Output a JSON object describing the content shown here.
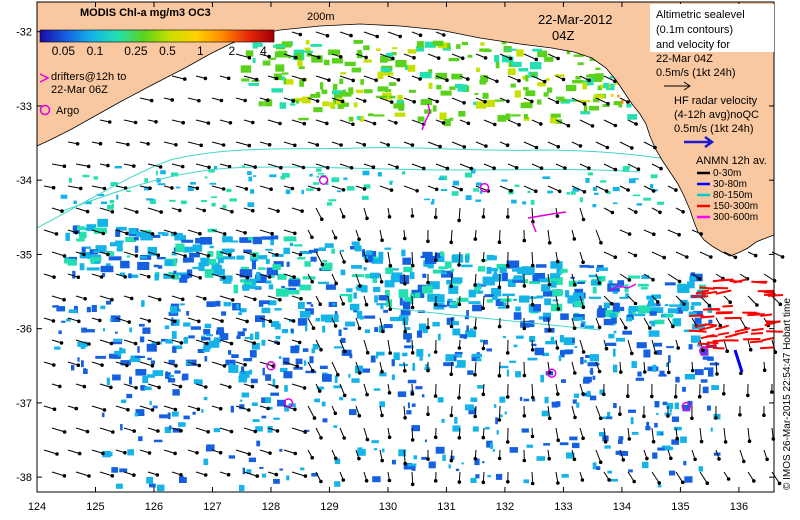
{
  "map": {
    "title": "MODIS Chl-a mg/m3 OC3",
    "date": "22-Mar-2012",
    "time": "04Z",
    "isobath_label": "200m",
    "colorbar_ticks": [
      "0.05",
      "0.1",
      "0.25",
      "0.5",
      "1",
      "2",
      "4"
    ],
    "colormap": [
      "#1a0aa8",
      "#1560e0",
      "#14b4e8",
      "#24e0b0",
      "#5ad21c",
      "#c8e000",
      "#ffd200",
      "#ff8c00",
      "#e8280a",
      "#a00000"
    ],
    "drifters_label_1": "drifters@12h to",
    "drifters_label_2": "22-Mar 06Z",
    "argo_label": "Argo",
    "altimetric_lines": [
      "Altimetric sealevel",
      "(0.1m contours)",
      "and velocity for",
      "22-Mar 04Z",
      "0.5m/s (1kt 24h)"
    ],
    "hfradar_lines": [
      "HF radar velocity",
      "(4-12h avg)noQC",
      "0.5m/s (1kt 24h)"
    ],
    "anmn_title": "ANMN 12h av.",
    "anmn_depths": [
      {
        "label": "0-30m",
        "color": "#000000"
      },
      {
        "label": "30-80m",
        "color": "#0000ff"
      },
      {
        "label": "80-150m",
        "color": "#00cccc"
      },
      {
        "label": "150-300m",
        "color": "#ff0000"
      },
      {
        "label": "300-600m",
        "color": "#ff00ff"
      }
    ],
    "credit": "© IMOS 26-Mar-2015 22:54:47 Hobart time",
    "x_ticks": [
      "124",
      "125",
      "126",
      "127",
      "128",
      "129",
      "130",
      "131",
      "132",
      "133",
      "134",
      "135",
      "136"
    ],
    "y_ticks": [
      "-32",
      "-33",
      "-34",
      "-35",
      "-36",
      "-37",
      "-38"
    ],
    "land_color": "#fac8a0",
    "argo_floats": [
      {
        "lon": 128.9,
        "lat": -34.0
      },
      {
        "lon": 131.65,
        "lat": -34.1
      },
      {
        "lon": 128.0,
        "lat": -36.5
      },
      {
        "lon": 128.3,
        "lat": -37.0
      },
      {
        "lon": 132.8,
        "lat": -36.6
      },
      {
        "lon": 135.1,
        "lat": -37.05
      },
      {
        "lon": 135.4,
        "lat": -36.3
      }
    ]
  }
}
